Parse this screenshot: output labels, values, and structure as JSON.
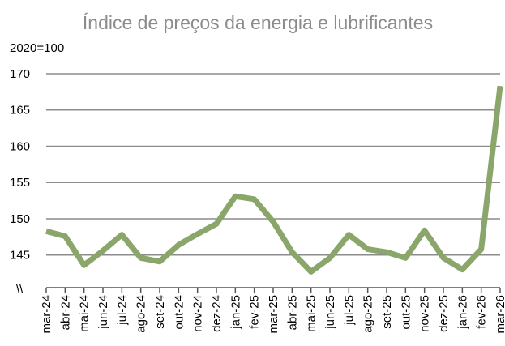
{
  "chart_data": {
    "type": "line",
    "title": "Índice de preços da energia e lubrificantes",
    "y_axis_label": "2020=100",
    "axis_break": "\\\\",
    "categories": [
      "mar-24",
      "abr-24",
      "mai-24",
      "jun-24",
      "jul-24",
      "ago-24",
      "set-24",
      "out-24",
      "nov-24",
      "dez-24",
      "jan-25",
      "fev-25",
      "mar-25",
      "abr-25",
      "mai-25",
      "jun-25",
      "jul-25",
      "ago-25",
      "set-25",
      "out-25",
      "nov-25",
      "dez-25",
      "jan-26",
      "fev-26",
      "mar-26"
    ],
    "series": [
      {
        "name": "Índice de preços da energia e lubrificantes",
        "color": "#8aa66a",
        "values": [
          148.3,
          147.6,
          143.6,
          145.6,
          147.8,
          144.6,
          144.1,
          146.4,
          147.9,
          149.3,
          153.1,
          152.7,
          149.6,
          145.4,
          142.7,
          144.6,
          147.8,
          145.8,
          145.4,
          144.6,
          148.4,
          144.6,
          143.0,
          145.8,
          168.3
        ]
      }
    ],
    "ylim": [
      140.5,
      170
    ],
    "yticks": [
      145,
      150,
      155,
      160,
      165,
      170
    ],
    "grid": true
  }
}
